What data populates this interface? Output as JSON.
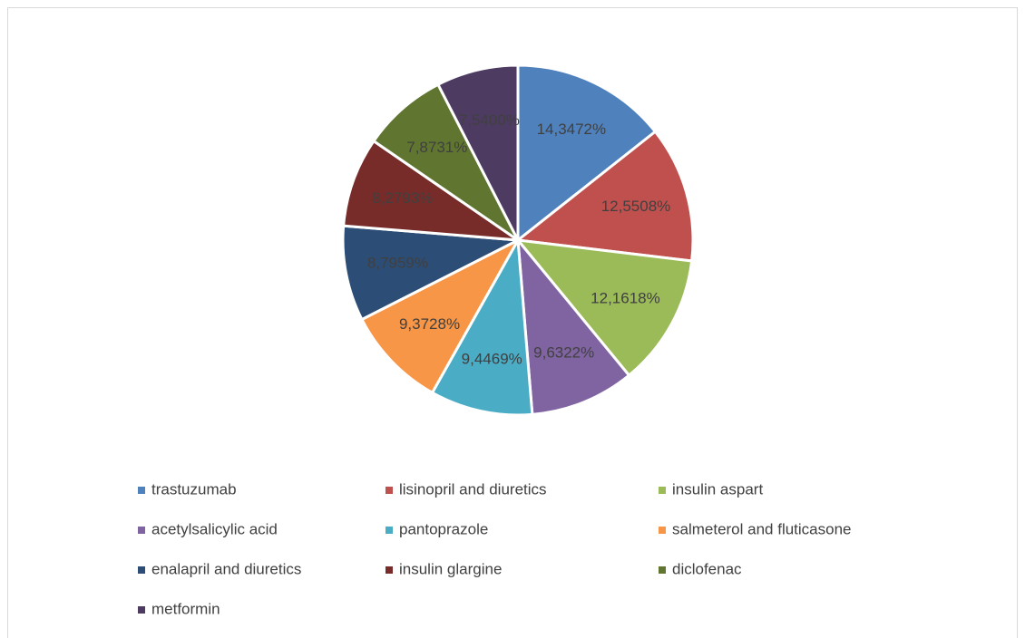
{
  "chart_data": {
    "type": "pie",
    "categories": [
      "trastuzumab",
      "lisinopril and diuretics",
      "insulin aspart",
      "acetylsalicylic acid",
      "pantoprazole",
      "salmeterol and fluticasone",
      "enalapril and diuretics",
      "insulin glargine",
      "diclofenac",
      "metformin"
    ],
    "values": [
      14.3472,
      12.5508,
      12.1618,
      9.6322,
      9.4469,
      9.3728,
      8.7959,
      8.2793,
      7.8731,
      7.54
    ],
    "value_labels": [
      "14,3472%",
      "12,5508%",
      "12,1618%",
      "9,6322%",
      "9,4469%",
      "9,3728%",
      "8,7959%",
      "8,2793%",
      "7,8731%",
      "7,5400%"
    ],
    "colors": [
      "#4f81bd",
      "#c0504d",
      "#9bbb59",
      "#8064a2",
      "#4bacc6",
      "#f79646",
      "#2c4d75",
      "#772c2a",
      "#5f7530",
      "#4d3b62"
    ],
    "legend": "bottom"
  }
}
